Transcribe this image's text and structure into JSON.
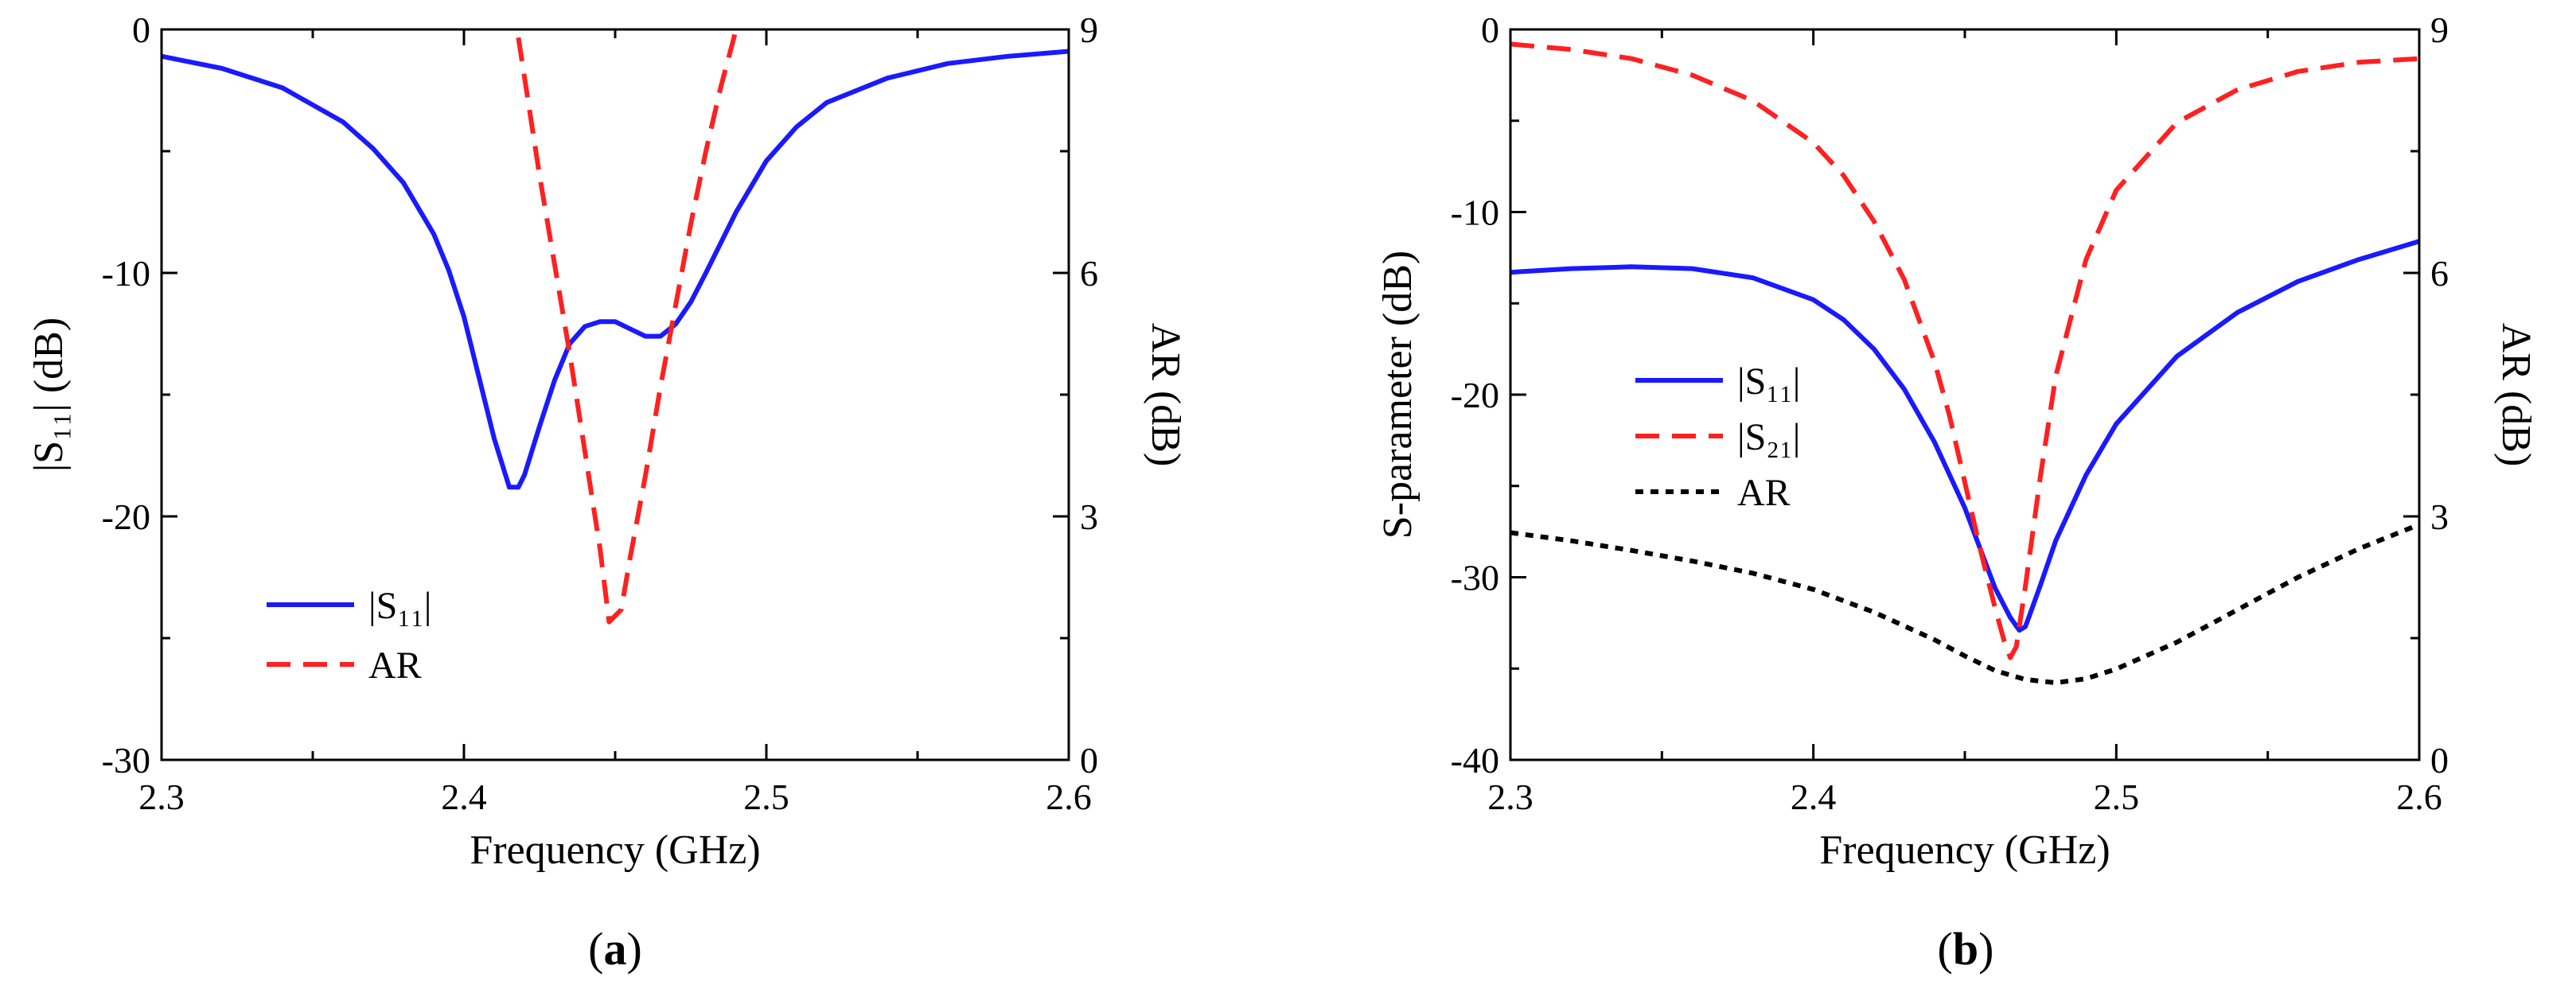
{
  "chart_data": [
    {
      "type": "line",
      "caption_open": "(",
      "caption_letter": "a",
      "caption_close": ")",
      "xlabel": "Frequency (GHz)",
      "ylabel_left": "|S₁₁| (dB)",
      "ylabel_right": "AR (dB)",
      "xlim": [
        2.3,
        2.6
      ],
      "ylim_left": [
        -30,
        0
      ],
      "ylim_right": [
        0,
        9
      ],
      "xticks": [
        "2.3",
        "2.4",
        "2.5",
        "2.6"
      ],
      "yticks_left": [
        "0",
        "-10",
        "-20",
        "-30"
      ],
      "yticks_right": [
        "9",
        "6",
        "3",
        "0"
      ],
      "legend_position": "lower-left",
      "series": [
        {
          "name": "|S₁₁|",
          "axis": "left",
          "color": "#1a1aff",
          "style": "solid",
          "x": [
            2.3,
            2.32,
            2.34,
            2.36,
            2.37,
            2.38,
            2.39,
            2.395,
            2.4,
            2.405,
            2.41,
            2.415,
            2.418,
            2.42,
            2.425,
            2.43,
            2.435,
            2.44,
            2.445,
            2.45,
            2.455,
            2.46,
            2.465,
            2.47,
            2.475,
            2.48,
            2.49,
            2.5,
            2.51,
            2.52,
            2.54,
            2.56,
            2.58,
            2.6
          ],
          "y": [
            -1.1,
            -1.6,
            -2.4,
            -3.8,
            -4.9,
            -6.3,
            -8.4,
            -9.9,
            -11.8,
            -14.3,
            -16.8,
            -18.8,
            -18.8,
            -18.3,
            -16.3,
            -14.4,
            -12.9,
            -12.2,
            -12.0,
            -12.0,
            -12.3,
            -12.6,
            -12.6,
            -12.1,
            -11.2,
            -10.0,
            -7.5,
            -5.4,
            -4.0,
            -3.0,
            -2.0,
            -1.4,
            -1.1,
            -0.9
          ]
        },
        {
          "name": "AR",
          "axis": "right",
          "color": "#ff2020",
          "style": "dashed",
          "x": [
            2.418,
            2.425,
            2.43,
            2.435,
            2.44,
            2.445,
            2.448,
            2.452,
            2.455,
            2.46,
            2.465,
            2.47,
            2.475,
            2.48,
            2.485,
            2.49
          ],
          "y": [
            8.9,
            7.2,
            6.1,
            5.0,
            3.8,
            2.6,
            1.7,
            1.85,
            2.5,
            3.5,
            4.6,
            5.6,
            6.6,
            7.5,
            8.3,
            9.0
          ]
        }
      ]
    },
    {
      "type": "line",
      "caption_open": "(",
      "caption_letter": "b",
      "caption_close": ")",
      "xlabel": "Frequency (GHz)",
      "ylabel_left": "S-parameter (dB)",
      "ylabel_right": "AR (dB)",
      "xlim": [
        2.3,
        2.6
      ],
      "ylim_left": [
        -40,
        0
      ],
      "ylim_right": [
        0,
        9
      ],
      "xticks": [
        "2.3",
        "2.4",
        "2.5",
        "2.6"
      ],
      "yticks_left": [
        "0",
        "-10",
        "-20",
        "-30",
        "-40"
      ],
      "yticks_right": [
        "9",
        "6",
        "3",
        "0"
      ],
      "legend_position": "center-left",
      "series": [
        {
          "name": "|S₁₁|",
          "axis": "left",
          "color": "#1a1aff",
          "style": "solid",
          "x": [
            2.3,
            2.32,
            2.34,
            2.36,
            2.38,
            2.4,
            2.41,
            2.42,
            2.43,
            2.44,
            2.45,
            2.455,
            2.46,
            2.465,
            2.468,
            2.47,
            2.472,
            2.475,
            2.48,
            2.49,
            2.5,
            2.52,
            2.54,
            2.56,
            2.58,
            2.6
          ],
          "y": [
            -13.3,
            -13.1,
            -13.0,
            -13.1,
            -13.6,
            -14.8,
            -15.9,
            -17.5,
            -19.7,
            -22.6,
            -26.2,
            -28.4,
            -30.6,
            -32.2,
            -32.9,
            -32.7,
            -31.8,
            -30.4,
            -28.0,
            -24.4,
            -21.6,
            -17.9,
            -15.5,
            -13.8,
            -12.6,
            -11.6
          ]
        },
        {
          "name": "|S₂₁|",
          "axis": "left",
          "color": "#ff2020",
          "style": "dashed",
          "x": [
            2.3,
            2.32,
            2.34,
            2.36,
            2.38,
            2.4,
            2.41,
            2.42,
            2.43,
            2.44,
            2.445,
            2.45,
            2.455,
            2.46,
            2.463,
            2.465,
            2.467,
            2.47,
            2.475,
            2.48,
            2.49,
            2.5,
            2.52,
            2.54,
            2.56,
            2.58,
            2.6
          ],
          "y": [
            -0.8,
            -1.1,
            -1.6,
            -2.5,
            -3.9,
            -6.2,
            -8.0,
            -10.5,
            -13.7,
            -18.2,
            -21.2,
            -24.8,
            -28.4,
            -31.7,
            -33.5,
            -34.4,
            -33.8,
            -30.5,
            -24.4,
            -19.0,
            -12.6,
            -8.8,
            -5.1,
            -3.3,
            -2.3,
            -1.8,
            -1.6
          ]
        },
        {
          "name": "AR",
          "axis": "right",
          "color": "#000000",
          "style": "dotted",
          "x": [
            2.3,
            2.32,
            2.34,
            2.36,
            2.38,
            2.4,
            2.42,
            2.44,
            2.45,
            2.46,
            2.47,
            2.48,
            2.49,
            2.5,
            2.52,
            2.54,
            2.56,
            2.58,
            2.6
          ],
          "y": [
            2.8,
            2.7,
            2.58,
            2.45,
            2.3,
            2.1,
            1.82,
            1.48,
            1.28,
            1.1,
            0.99,
            0.95,
            1.0,
            1.12,
            1.45,
            1.85,
            2.25,
            2.6,
            2.9
          ]
        }
      ]
    }
  ]
}
